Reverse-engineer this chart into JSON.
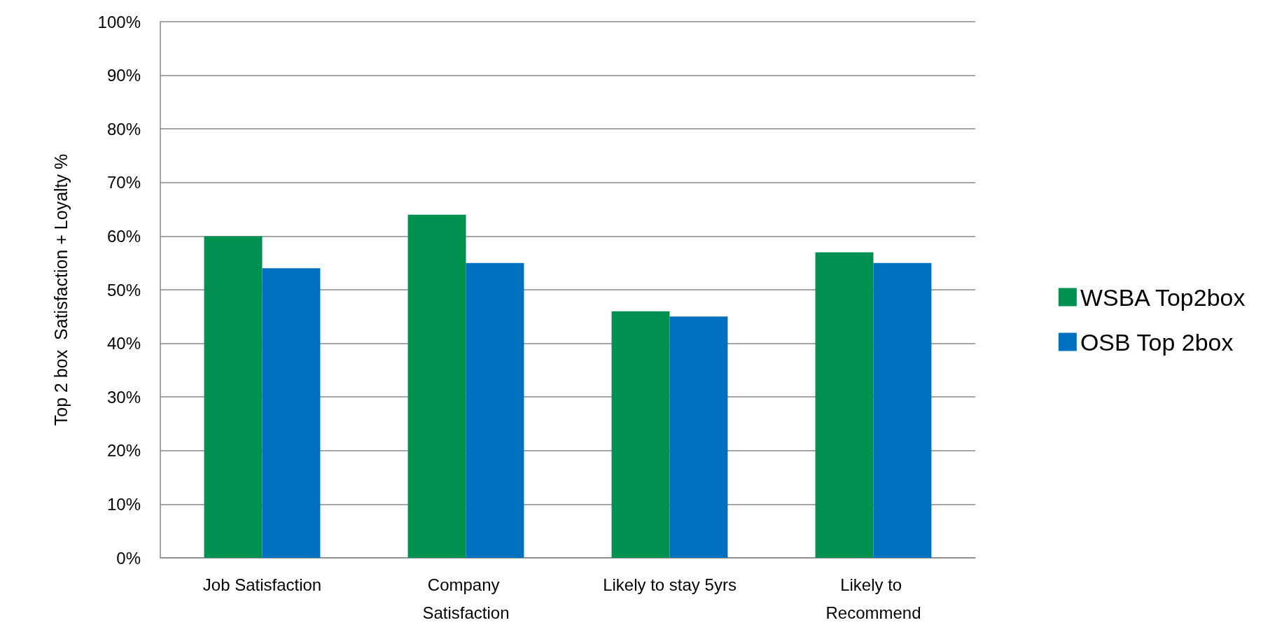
{
  "chart_data": {
    "type": "bar",
    "ylabel": "Top 2 box  Satisfaction + Loyalty %",
    "categories": [
      "Job Satisfaction",
      "Company Satisfaction",
      "Likely to stay 5yrs",
      "Likely to Recommend"
    ],
    "series": [
      {
        "name": "WSBA Top2box",
        "color": "#00904f",
        "values": [
          60,
          64,
          46,
          57
        ]
      },
      {
        "name": "OSB Top 2box",
        "color": "#0070c0",
        "values": [
          54,
          55,
          45,
          55
        ]
      }
    ],
    "ylim": [
      0,
      100
    ],
    "yticks": [
      {
        "value": 0,
        "label": "0%"
      },
      {
        "value": 10,
        "label": "10%"
      },
      {
        "value": 20,
        "label": "20%"
      },
      {
        "value": 30,
        "label": "30%"
      },
      {
        "value": 40,
        "label": "40%"
      },
      {
        "value": 50,
        "label": "50%"
      },
      {
        "value": 60,
        "label": "60%"
      },
      {
        "value": 70,
        "label": "70%"
      },
      {
        "value": 80,
        "label": "80%"
      },
      {
        "value": 90,
        "label": "90%"
      },
      {
        "value": 100,
        "label": "100%"
      }
    ],
    "grid": "y",
    "legend": "right"
  }
}
